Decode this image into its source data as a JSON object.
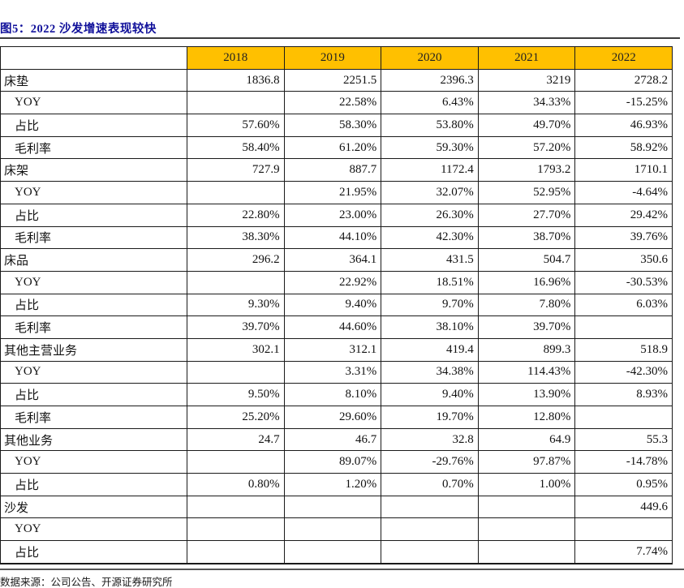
{
  "figure": {
    "title": "图5：2022 沙发增速表现较快",
    "source_note": "数据来源：公司公告、开源证券研究所"
  },
  "colors": {
    "header_bg": "#FFC000",
    "title_text": "#10109A",
    "border": "#1a1a1a"
  },
  "table": {
    "corner_label": "",
    "col_headers": [
      "2018",
      "2019",
      "2020",
      "2021",
      "2022"
    ],
    "rows": [
      {
        "label": "床垫",
        "indent": false,
        "values": [
          "1836.8",
          "2251.5",
          "2396.3",
          "3219",
          "2728.2"
        ]
      },
      {
        "label": "YOY",
        "indent": true,
        "values": [
          "",
          "22.58%",
          "6.43%",
          "34.33%",
          "-15.25%"
        ]
      },
      {
        "label": "占比",
        "indent": true,
        "values": [
          "57.60%",
          "58.30%",
          "53.80%",
          "49.70%",
          "46.93%"
        ]
      },
      {
        "label": "毛利率",
        "indent": true,
        "values": [
          "58.40%",
          "61.20%",
          "59.30%",
          "57.20%",
          "58.92%"
        ]
      },
      {
        "label": "床架",
        "indent": false,
        "values": [
          "727.9",
          "887.7",
          "1172.4",
          "1793.2",
          "1710.1"
        ]
      },
      {
        "label": "YOY",
        "indent": true,
        "values": [
          "",
          "21.95%",
          "32.07%",
          "52.95%",
          "-4.64%"
        ]
      },
      {
        "label": "占比",
        "indent": true,
        "values": [
          "22.80%",
          "23.00%",
          "26.30%",
          "27.70%",
          "29.42%"
        ]
      },
      {
        "label": "毛利率",
        "indent": true,
        "values": [
          "38.30%",
          "44.10%",
          "42.30%",
          "38.70%",
          "39.76%"
        ]
      },
      {
        "label": "床品",
        "indent": false,
        "values": [
          "296.2",
          "364.1",
          "431.5",
          "504.7",
          "350.6"
        ]
      },
      {
        "label": "YOY",
        "indent": true,
        "values": [
          "",
          "22.92%",
          "18.51%",
          "16.96%",
          "-30.53%"
        ]
      },
      {
        "label": "占比",
        "indent": true,
        "values": [
          "9.30%",
          "9.40%",
          "9.70%",
          "7.80%",
          "6.03%"
        ]
      },
      {
        "label": "毛利率",
        "indent": true,
        "values": [
          "39.70%",
          "44.60%",
          "38.10%",
          "39.70%",
          ""
        ]
      },
      {
        "label": "其他主营业务",
        "indent": false,
        "values": [
          "302.1",
          "312.1",
          "419.4",
          "899.3",
          "518.9"
        ]
      },
      {
        "label": "YOY",
        "indent": true,
        "values": [
          "",
          "3.31%",
          "34.38%",
          "114.43%",
          "-42.30%"
        ]
      },
      {
        "label": "占比",
        "indent": true,
        "values": [
          "9.50%",
          "8.10%",
          "9.40%",
          "13.90%",
          "8.93%"
        ]
      },
      {
        "label": "毛利率",
        "indent": true,
        "values": [
          "25.20%",
          "29.60%",
          "19.70%",
          "12.80%",
          ""
        ]
      },
      {
        "label": "其他业务",
        "indent": false,
        "values": [
          "24.7",
          "46.7",
          "32.8",
          "64.9",
          "55.3"
        ]
      },
      {
        "label": "YOY",
        "indent": true,
        "values": [
          "",
          "89.07%",
          "-29.76%",
          "97.87%",
          "-14.78%"
        ]
      },
      {
        "label": "占比",
        "indent": true,
        "values": [
          "0.80%",
          "1.20%",
          "0.70%",
          "1.00%",
          "0.95%"
        ]
      },
      {
        "label": "沙发",
        "indent": false,
        "values": [
          "",
          "",
          "",
          "",
          "449.6"
        ]
      },
      {
        "label": "YOY",
        "indent": true,
        "values": [
          "",
          "",
          "",
          "",
          ""
        ]
      },
      {
        "label": "占比",
        "indent": true,
        "values": [
          "",
          "",
          "",
          "",
          "7.74%"
        ]
      }
    ]
  }
}
